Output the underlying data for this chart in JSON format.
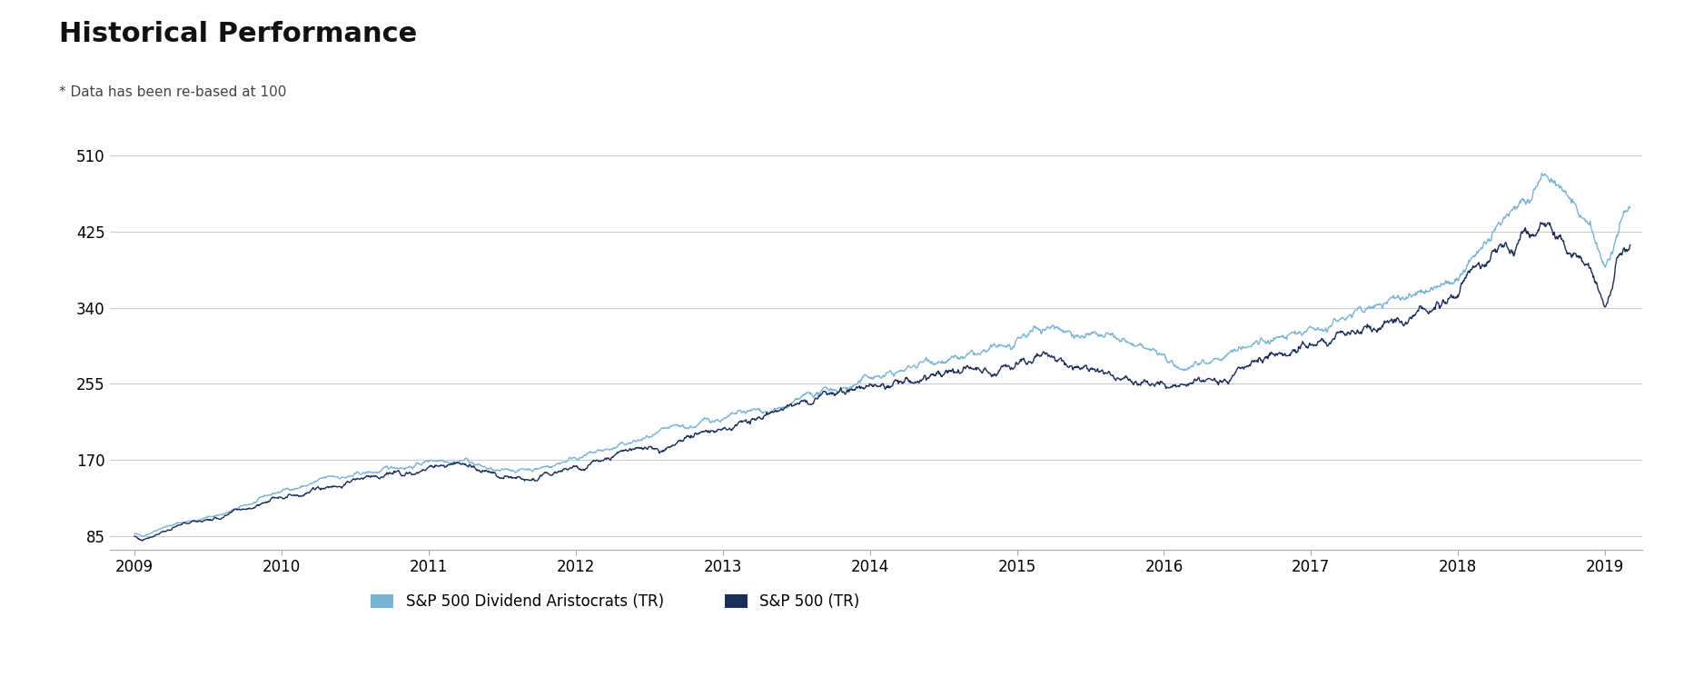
{
  "title": "Historical Performance",
  "subtitle": "* Data has been re-based at 100",
  "title_fontsize": 22,
  "subtitle_fontsize": 11,
  "background_color": "#ffffff",
  "line1_color": "#7ab4d4",
  "line2_color": "#1a2e5a",
  "line1_label": "S&P 500 Dividend Aristocrats (TR)",
  "line2_label": "S&P 500 (TR)",
  "yticks": [
    85,
    170,
    255,
    340,
    425,
    510
  ],
  "ylim": [
    70,
    530
  ],
  "xlim_start": 2008.83,
  "xlim_end": 2019.25,
  "xtick_labels": [
    "2009",
    "2010",
    "2011",
    "2012",
    "2013",
    "2014",
    "2015",
    "2016",
    "2017",
    "2018",
    "2019"
  ],
  "xtick_positions": [
    2009,
    2010,
    2011,
    2012,
    2013,
    2014,
    2015,
    2016,
    2017,
    2018,
    2019
  ],
  "grid_color": "#cccccc",
  "grid_linewidth": 0.8,
  "line_linewidth": 1.0,
  "legend_fontsize": 12,
  "axis_fontsize": 12
}
